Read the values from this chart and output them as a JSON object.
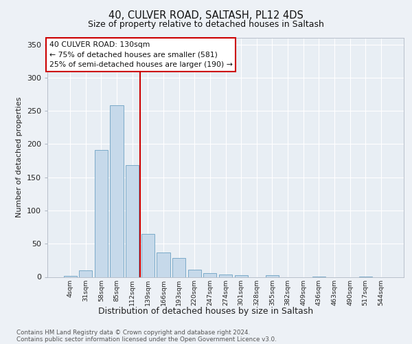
{
  "title1": "40, CULVER ROAD, SALTASH, PL12 4DS",
  "title2": "Size of property relative to detached houses in Saltash",
  "xlabel": "Distribution of detached houses by size in Saltash",
  "ylabel": "Number of detached properties",
  "bar_labels": [
    "4sqm",
    "31sqm",
    "58sqm",
    "85sqm",
    "112sqm",
    "139sqm",
    "166sqm",
    "193sqm",
    "220sqm",
    "247sqm",
    "274sqm",
    "301sqm",
    "328sqm",
    "355sqm",
    "382sqm",
    "409sqm",
    "436sqm",
    "463sqm",
    "490sqm",
    "517sqm",
    "544sqm"
  ],
  "bar_heights": [
    2,
    10,
    191,
    258,
    168,
    65,
    37,
    28,
    11,
    6,
    4,
    3,
    0,
    3,
    0,
    0,
    1,
    0,
    0,
    1,
    0
  ],
  "bar_color": "#c6d9ea",
  "bar_edge_color": "#7baac8",
  "vline_color": "#cc0000",
  "annotation_lines": [
    "40 CULVER ROAD: 130sqm",
    "← 75% of detached houses are smaller (581)",
    "25% of semi-detached houses are larger (190) →"
  ],
  "annotation_box_color": "#cc0000",
  "ylim": [
    0,
    360
  ],
  "yticks": [
    0,
    50,
    100,
    150,
    200,
    250,
    300,
    350
  ],
  "footnote1": "Contains HM Land Registry data © Crown copyright and database right 2024.",
  "footnote2": "Contains public sector information licensed under the Open Government Licence v3.0.",
  "bg_color": "#e8eef4",
  "grid_color": "#ffffff",
  "fig_bg": "#edf1f6"
}
